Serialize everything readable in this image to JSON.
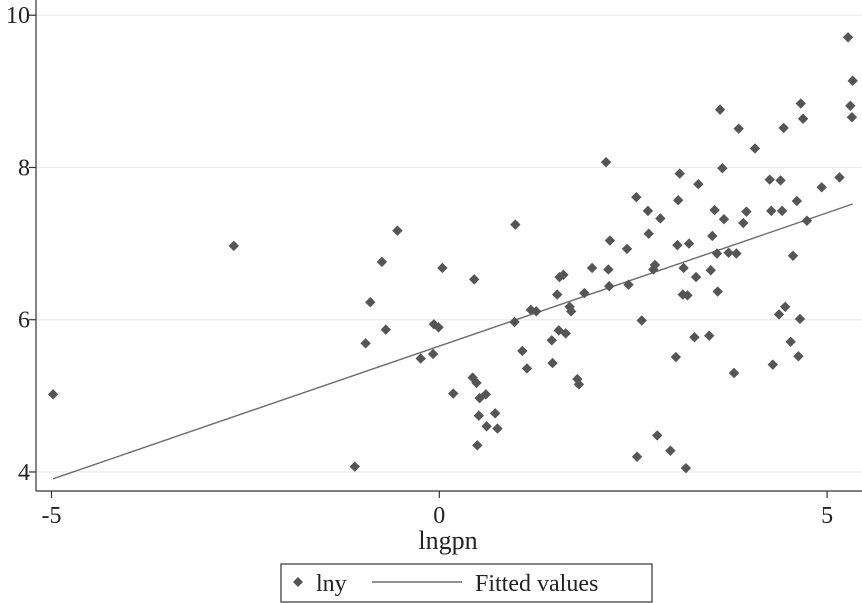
{
  "chart_data": {
    "type": "scatter",
    "xlabel": "lngpn",
    "ylabel": "",
    "xlim": [
      -5.2,
      5.45
    ],
    "ylim": [
      3.75,
      10.2
    ],
    "xticks": [
      -5,
      0,
      5
    ],
    "xtick_labels": [
      "-5",
      "0",
      "5"
    ],
    "yticks": [
      4,
      6,
      8,
      10
    ],
    "ytick_labels": [
      "4",
      "6",
      "8",
      "10"
    ],
    "grid": true,
    "legend_position": "bottom",
    "colors": {
      "points": "#555555",
      "fit_line": "#6b6b6b",
      "grid": "#e8eef2",
      "axis": "#333333"
    },
    "series": [
      {
        "name": "lny",
        "kind": "scatter",
        "marker": "diamond",
        "points": [
          [
            -4.98,
            5.02
          ],
          [
            -2.65,
            6.97
          ],
          [
            -1.09,
            4.07
          ],
          [
            -0.95,
            5.69
          ],
          [
            -0.89,
            6.23
          ],
          [
            -0.74,
            6.76
          ],
          [
            -0.69,
            5.87
          ],
          [
            -0.54,
            7.17
          ],
          [
            -0.24,
            5.49
          ],
          [
            -0.08,
            5.55
          ],
          [
            -0.07,
            5.94
          ],
          [
            -0.01,
            5.9
          ],
          [
            0.04,
            6.68
          ],
          [
            0.18,
            5.03
          ],
          [
            0.43,
            5.24
          ],
          [
            0.45,
            6.53
          ],
          [
            0.48,
            5.17
          ],
          [
            0.49,
            4.35
          ],
          [
            0.51,
            4.74
          ],
          [
            0.52,
            4.97
          ],
          [
            0.6,
            5.02
          ],
          [
            0.61,
            4.6
          ],
          [
            0.72,
            4.77
          ],
          [
            0.75,
            4.57
          ],
          [
            0.97,
            5.97
          ],
          [
            0.98,
            7.25
          ],
          [
            1.07,
            5.59
          ],
          [
            1.13,
            5.36
          ],
          [
            1.18,
            6.13
          ],
          [
            1.25,
            6.11
          ],
          [
            1.45,
            5.73
          ],
          [
            1.46,
            5.43
          ],
          [
            1.52,
            6.33
          ],
          [
            1.54,
            5.86
          ],
          [
            1.55,
            6.56
          ],
          [
            1.6,
            6.59
          ],
          [
            1.63,
            5.82
          ],
          [
            1.68,
            6.17
          ],
          [
            1.7,
            6.11
          ],
          [
            1.78,
            5.22
          ],
          [
            1.8,
            5.15
          ],
          [
            1.87,
            6.35
          ],
          [
            1.97,
            6.68
          ],
          [
            2.15,
            8.07
          ],
          [
            2.18,
            6.66
          ],
          [
            2.19,
            6.44
          ],
          [
            2.2,
            7.04
          ],
          [
            2.42,
            6.93
          ],
          [
            2.44,
            6.46
          ],
          [
            2.54,
            7.61
          ],
          [
            2.55,
            4.2
          ],
          [
            2.61,
            5.99
          ],
          [
            2.69,
            7.43
          ],
          [
            2.7,
            7.13
          ],
          [
            2.76,
            6.66
          ],
          [
            2.78,
            6.72
          ],
          [
            2.81,
            4.48
          ],
          [
            2.85,
            7.33
          ],
          [
            2.98,
            4.28
          ],
          [
            3.05,
            5.51
          ],
          [
            3.07,
            6.98
          ],
          [
            3.08,
            7.57
          ],
          [
            3.1,
            7.92
          ],
          [
            3.14,
            6.33
          ],
          [
            3.15,
            6.68
          ],
          [
            3.18,
            4.05
          ],
          [
            3.2,
            6.32
          ],
          [
            3.22,
            7.0
          ],
          [
            3.29,
            5.77
          ],
          [
            3.31,
            6.56
          ],
          [
            3.34,
            7.78
          ],
          [
            3.48,
            5.79
          ],
          [
            3.5,
            6.65
          ],
          [
            3.52,
            7.1
          ],
          [
            3.55,
            7.44
          ],
          [
            3.58,
            6.87
          ],
          [
            3.59,
            6.37
          ],
          [
            3.62,
            8.76
          ],
          [
            3.65,
            7.99
          ],
          [
            3.67,
            7.32
          ],
          [
            3.73,
            6.88
          ],
          [
            3.8,
            5.3
          ],
          [
            3.83,
            6.87
          ],
          [
            3.86,
            8.51
          ],
          [
            3.92,
            7.27
          ],
          [
            3.96,
            7.42
          ],
          [
            4.07,
            8.25
          ],
          [
            4.26,
            7.84
          ],
          [
            4.28,
            7.43
          ],
          [
            4.3,
            5.41
          ],
          [
            4.38,
            6.07
          ],
          [
            4.4,
            7.83
          ],
          [
            4.42,
            7.43
          ],
          [
            4.44,
            8.52
          ],
          [
            4.46,
            6.17
          ],
          [
            4.53,
            5.71
          ],
          [
            4.56,
            6.84
          ],
          [
            4.61,
            7.56
          ],
          [
            4.63,
            5.52
          ],
          [
            4.65,
            6.01
          ],
          [
            4.66,
            8.84
          ],
          [
            4.69,
            8.64
          ],
          [
            4.74,
            7.3
          ],
          [
            4.93,
            7.74
          ],
          [
            5.16,
            7.87
          ],
          [
            5.27,
            9.71
          ],
          [
            5.3,
            8.81
          ],
          [
            5.32,
            8.66
          ],
          [
            5.33,
            9.14
          ]
        ]
      },
      {
        "name": "Fitted values",
        "kind": "line",
        "points": [
          [
            -4.98,
            3.91
          ],
          [
            5.33,
            7.52
          ]
        ]
      }
    ]
  }
}
